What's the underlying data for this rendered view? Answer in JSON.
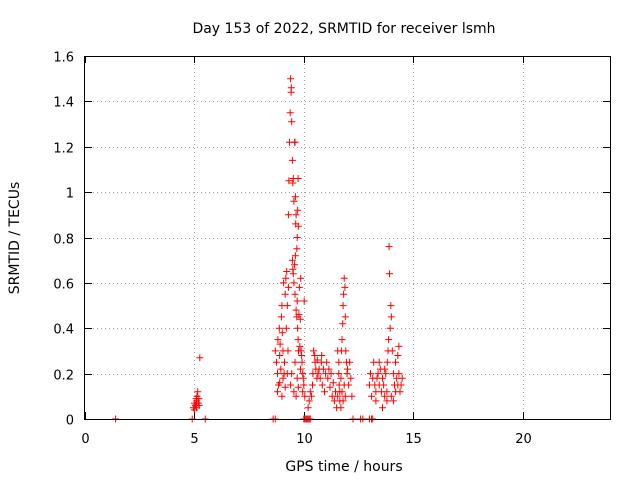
{
  "chart_data": {
    "type": "scatter",
    "title": "Day 153 of 2022, SRMTID for receiver lsmh",
    "xlabel": "GPS time / hours",
    "ylabel": "SRMTID / TECUs",
    "xlim": [
      0,
      24
    ],
    "ylim": [
      0,
      1.6
    ],
    "grid": true,
    "marker": "+",
    "marker_color": "#ff0000",
    "x_ticks": [
      0,
      5,
      10,
      15,
      20
    ],
    "x_tick_labels": [
      "0",
      "5",
      "10",
      "15",
      "20"
    ],
    "y_ticks": [
      0,
      0.2,
      0.4,
      0.6,
      0.8,
      1.0,
      1.2,
      1.4,
      1.6
    ],
    "y_tick_labels": [
      "0",
      "0.2",
      "0.4",
      "0.6",
      "0.8",
      "1",
      "1.2",
      "1.4",
      "1.6"
    ],
    "series": [
      {
        "name": "SRMTID",
        "points": [
          [
            1.4,
            0.0
          ],
          [
            4.9,
            0.0
          ],
          [
            5.5,
            0.0
          ],
          [
            4.95,
            0.05
          ],
          [
            5.0,
            0.07
          ],
          [
            5.05,
            0.06
          ],
          [
            5.08,
            0.09
          ],
          [
            5.1,
            0.08
          ],
          [
            5.12,
            0.1
          ],
          [
            5.15,
            0.12
          ],
          [
            5.18,
            0.07
          ],
          [
            5.2,
            0.09
          ],
          [
            5.22,
            0.06
          ],
          [
            5.0,
            0.04
          ],
          [
            5.1,
            0.05
          ],
          [
            5.25,
            0.27
          ],
          [
            8.6,
            0.0
          ],
          [
            8.7,
            0.0
          ],
          [
            8.7,
            0.3
          ],
          [
            8.75,
            0.25
          ],
          [
            8.8,
            0.2
          ],
          [
            8.82,
            0.35
          ],
          [
            8.85,
            0.15
          ],
          [
            8.88,
            0.4
          ],
          [
            8.9,
            0.28
          ],
          [
            8.92,
            0.33
          ],
          [
            8.95,
            0.22
          ],
          [
            8.98,
            0.45
          ],
          [
            9.0,
            0.5
          ],
          [
            9.02,
            0.38
          ],
          [
            9.05,
            0.3
          ],
          [
            9.08,
            0.6
          ],
          [
            9.1,
            0.2
          ],
          [
            9.12,
            0.25
          ],
          [
            9.15,
            0.55
          ],
          [
            9.18,
            0.62
          ],
          [
            9.2,
            0.4
          ],
          [
            9.22,
            0.65
          ],
          [
            9.25,
            0.5
          ],
          [
            9.28,
            0.3
          ],
          [
            9.3,
            0.58
          ],
          [
            9.3,
            0.9
          ],
          [
            9.32,
            1.05
          ],
          [
            9.35,
            1.22
          ],
          [
            9.38,
            1.35
          ],
          [
            9.4,
            1.5
          ],
          [
            9.42,
            1.44
          ],
          [
            9.43,
            1.46
          ],
          [
            9.45,
            1.31
          ],
          [
            9.48,
            1.14
          ],
          [
            9.5,
            1.04
          ],
          [
            9.52,
            1.06
          ],
          [
            9.55,
            0.96
          ],
          [
            9.58,
            1.22
          ],
          [
            9.6,
            1.22
          ],
          [
            9.62,
            0.98
          ],
          [
            9.63,
            0.86
          ],
          [
            9.65,
            0.9
          ],
          [
            9.68,
            0.75
          ],
          [
            9.7,
            0.8
          ],
          [
            9.72,
            0.92
          ],
          [
            9.74,
            1.06
          ],
          [
            9.75,
            0.85
          ],
          [
            9.48,
            0.7
          ],
          [
            9.5,
            0.66
          ],
          [
            9.52,
            0.64
          ],
          [
            9.55,
            0.6
          ],
          [
            9.58,
            0.68
          ],
          [
            9.6,
            0.55
          ],
          [
            9.62,
            0.72
          ],
          [
            9.65,
            0.48
          ],
          [
            9.68,
            0.45
          ],
          [
            9.7,
            0.52
          ],
          [
            9.72,
            0.4
          ],
          [
            9.74,
            0.35
          ],
          [
            9.76,
            0.3
          ],
          [
            9.78,
            0.46
          ],
          [
            9.8,
            0.58
          ],
          [
            9.82,
            0.32
          ],
          [
            9.84,
            0.44
          ],
          [
            9.86,
            0.62
          ],
          [
            9.88,
            0.3
          ],
          [
            9.9,
            0.28
          ],
          [
            9.92,
            0.25
          ],
          [
            9.95,
            0.2
          ],
          [
            9.98,
            0.18
          ],
          [
            10.0,
            0.15
          ],
          [
            10.02,
            0.52
          ],
          [
            10.05,
            0.1
          ],
          [
            9.4,
            0.15
          ],
          [
            9.45,
            0.2
          ],
          [
            9.55,
            0.12
          ],
          [
            9.6,
            0.25
          ],
          [
            9.65,
            0.1
          ],
          [
            9.7,
            0.18
          ],
          [
            9.75,
            0.14
          ],
          [
            9.85,
            0.22
          ],
          [
            9.95,
            0.12
          ],
          [
            9.0,
            0.1
          ],
          [
            9.05,
            0.18
          ],
          [
            9.15,
            0.14
          ],
          [
            9.25,
            0.2
          ],
          [
            8.8,
            0.12
          ],
          [
            8.9,
            0.16
          ],
          [
            10.0,
            0.0
          ],
          [
            10.05,
            0.0
          ],
          [
            10.1,
            0.0
          ],
          [
            10.15,
            0.0
          ],
          [
            10.2,
            0.0
          ],
          [
            10.25,
            0.0
          ],
          [
            10.3,
            0.0
          ],
          [
            10.2,
            0.05
          ],
          [
            10.25,
            0.08
          ],
          [
            10.3,
            0.12
          ],
          [
            10.35,
            0.1
          ],
          [
            10.4,
            0.15
          ],
          [
            10.42,
            0.2
          ],
          [
            10.45,
            0.3
          ],
          [
            10.5,
            0.28
          ],
          [
            10.52,
            0.25
          ],
          [
            10.55,
            0.22
          ],
          [
            10.6,
            0.18
          ],
          [
            10.62,
            0.26
          ],
          [
            10.65,
            0.2
          ],
          [
            10.7,
            0.22
          ],
          [
            10.75,
            0.18
          ],
          [
            10.8,
            0.25
          ],
          [
            10.82,
            0.28
          ],
          [
            10.85,
            0.15
          ],
          [
            10.9,
            0.22
          ],
          [
            10.95,
            0.12
          ],
          [
            11.0,
            0.2
          ],
          [
            11.05,
            0.25
          ],
          [
            11.1,
            0.18
          ],
          [
            11.15,
            0.22
          ],
          [
            11.2,
            0.14
          ],
          [
            11.25,
            0.2
          ],
          [
            11.3,
            0.1
          ],
          [
            11.35,
            0.16
          ],
          [
            11.4,
            0.08
          ],
          [
            11.45,
            0.12
          ],
          [
            11.5,
            0.05
          ],
          [
            11.55,
            0.1
          ],
          [
            11.6,
            0.2
          ],
          [
            11.62,
            0.15
          ],
          [
            11.65,
            0.12
          ],
          [
            11.7,
            0.18
          ],
          [
            11.72,
            0.3
          ],
          [
            11.75,
            0.35
          ],
          [
            11.78,
            0.42
          ],
          [
            11.8,
            0.5
          ],
          [
            11.82,
            0.55
          ],
          [
            11.85,
            0.62
          ],
          [
            11.88,
            0.58
          ],
          [
            11.9,
            0.45
          ],
          [
            11.92,
            0.3
          ],
          [
            11.95,
            0.25
          ],
          [
            11.98,
            0.2
          ],
          [
            12.0,
            0.22
          ],
          [
            12.05,
            0.15
          ],
          [
            12.1,
            0.25
          ],
          [
            12.15,
            0.18
          ],
          [
            12.2,
            0.1
          ],
          [
            12.25,
            0.0
          ],
          [
            11.55,
            0.3
          ],
          [
            11.6,
            0.25
          ],
          [
            11.65,
            0.08
          ],
          [
            11.7,
            0.05
          ],
          [
            11.75,
            0.12
          ],
          [
            11.8,
            0.08
          ],
          [
            11.85,
            0.15
          ],
          [
            11.9,
            0.1
          ],
          [
            12.6,
            0.0
          ],
          [
            12.7,
            0.0
          ],
          [
            13.0,
            0.0
          ],
          [
            13.1,
            0.0
          ],
          [
            13.15,
            0.0
          ],
          [
            13.0,
            0.15
          ],
          [
            13.05,
            0.2
          ],
          [
            13.1,
            0.1
          ],
          [
            13.15,
            0.18
          ],
          [
            13.2,
            0.25
          ],
          [
            13.25,
            0.15
          ],
          [
            13.3,
            0.12
          ],
          [
            13.35,
            0.18
          ],
          [
            13.4,
            0.2
          ],
          [
            13.45,
            0.15
          ],
          [
            13.5,
            0.22
          ],
          [
            13.55,
            0.12
          ],
          [
            13.6,
            0.18
          ],
          [
            13.65,
            0.15
          ],
          [
            13.7,
            0.1
          ],
          [
            13.75,
            0.2
          ],
          [
            13.8,
            0.12
          ],
          [
            13.82,
            0.25
          ],
          [
            13.85,
            0.3
          ],
          [
            13.88,
            0.35
          ],
          [
            13.9,
            0.76
          ],
          [
            13.92,
            0.64
          ],
          [
            13.95,
            0.4
          ],
          [
            13.98,
            0.5
          ],
          [
            14.0,
            0.45
          ],
          [
            14.05,
            0.3
          ],
          [
            14.1,
            0.2
          ],
          [
            14.15,
            0.15
          ],
          [
            14.2,
            0.25
          ],
          [
            14.25,
            0.18
          ],
          [
            14.3,
            0.15
          ],
          [
            14.35,
            0.2
          ],
          [
            14.4,
            0.12
          ],
          [
            14.45,
            0.15
          ],
          [
            14.5,
            0.18
          ],
          [
            13.3,
            0.08
          ],
          [
            13.45,
            0.25
          ],
          [
            13.6,
            0.05
          ],
          [
            13.7,
            0.22
          ],
          [
            13.8,
            0.08
          ],
          [
            14.0,
            0.1
          ],
          [
            14.1,
            0.08
          ],
          [
            14.2,
            0.12
          ],
          [
            14.3,
            0.28
          ],
          [
            14.35,
            0.32
          ]
        ]
      }
    ]
  }
}
